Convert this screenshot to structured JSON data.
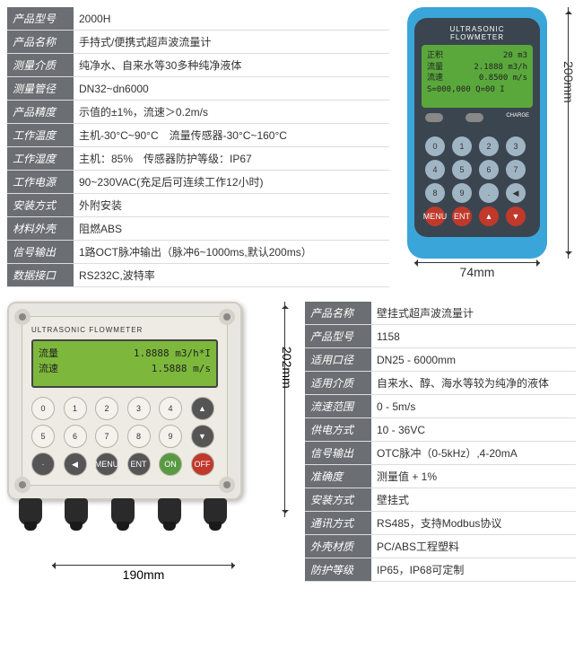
{
  "product1": {
    "specs": [
      {
        "label": "产品型号",
        "value": "2000H"
      },
      {
        "label": "产品名称",
        "value": "手持式/便携式超声波流量计"
      },
      {
        "label": "测量介质",
        "value": "纯净水、自来水等30多种纯净液体"
      },
      {
        "label": "测量管径",
        "value": "DN32~dn6000"
      },
      {
        "label": "产品精度",
        "value": "示值的±1%，流速＞0.2m/s"
      },
      {
        "label": "工作温度",
        "value": "主机-30°C~90°C　流量传感器-30°C~160°C"
      },
      {
        "label": "工作湿度",
        "value": "主机：85%　传感器防护等级：IP67"
      },
      {
        "label": "工作电源",
        "value": "90~230VAC(充足后可连续工作12小时)"
      },
      {
        "label": "安装方式",
        "value": "外附安装"
      },
      {
        "label": "材料外壳",
        "value": "阻燃ABS"
      },
      {
        "label": "信号输出",
        "value": "1路OCT脉冲输出（脉冲6~1000ms,默认200ms）"
      },
      {
        "label": "数据接口",
        "value": "RS232C,波特率"
      }
    ],
    "device_title": "ULTRASONIC FLOWMETER",
    "screen": {
      "r1a": "正积",
      "r1b": "20 m3",
      "r2a": "流量",
      "r2b": "2.1888 m3/h",
      "r3a": "流速",
      "r3b": "0.8500 m/s",
      "r4": "S=000,000  Q=00  I"
    },
    "keys": [
      "0",
      "1",
      "2",
      "3",
      "4",
      "5",
      "6",
      "7",
      "8",
      "9",
      ".",
      "◀",
      "MENU",
      "ENT",
      "▲",
      "▼"
    ],
    "charge_label": "CHARGE",
    "dims": {
      "height": "200mm",
      "width": "74mm"
    }
  },
  "product2": {
    "device_title": "ULTRASONIC FLOWMETER",
    "screen": {
      "r1a": "流量",
      "r1b": "1.8888 m3/h*I",
      "r2a": "流速",
      "r2b": "1.5888 m/s"
    },
    "keys": [
      "0",
      "1",
      "2",
      "3",
      "4",
      "▲",
      "5",
      "6",
      "7",
      "8",
      "9",
      "▼",
      "·",
      "◀",
      "MENU",
      "ENT",
      "ON",
      "OFF"
    ],
    "dims": {
      "height": "202mm",
      "width": "190mm"
    },
    "specs": [
      {
        "label": "产品名称",
        "value": "壁挂式超声波流量计"
      },
      {
        "label": "产品型号",
        "value": "1158"
      },
      {
        "label": "适用口径",
        "value": "DN25 - 6000mm"
      },
      {
        "label": "适用介质",
        "value": "自来水、醇、海水等较为纯净的液体"
      },
      {
        "label": "流速范围",
        "value": "0 - 5m/s"
      },
      {
        "label": "供电方式",
        "value": "10 - 36VC"
      },
      {
        "label": "信号输出",
        "value": "OTC脉冲（0-5kHz）,4-20mA"
      },
      {
        "label": "准确度",
        "value": "测量值 + 1%"
      },
      {
        "label": "安装方式",
        "value": "壁挂式"
      },
      {
        "label": "通讯方式",
        "value": "RS485，支持Modbus协议"
      },
      {
        "label": "外壳材质",
        "value": "PC/ABS工程塑料"
      },
      {
        "label": "防护等级",
        "value": "IP65，IP68可定制"
      }
    ]
  }
}
